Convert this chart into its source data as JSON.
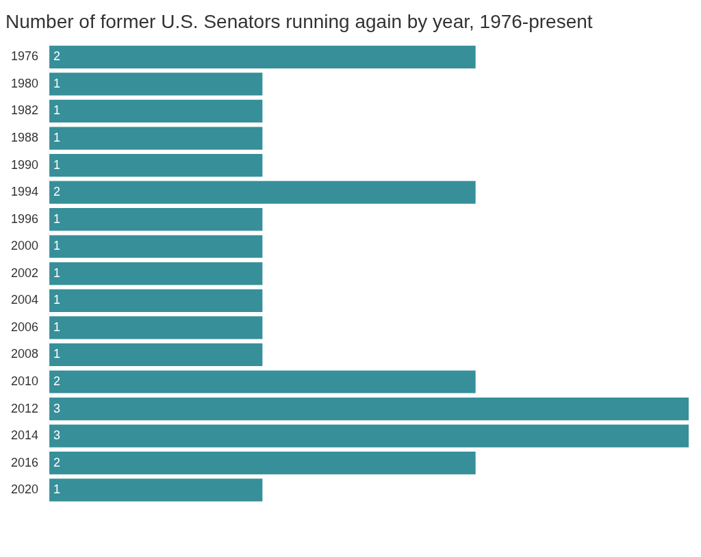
{
  "chart_data": {
    "type": "bar",
    "orientation": "horizontal",
    "title": "Number of former U.S. Senators running again by year, 1976-present",
    "categories": [
      "1976",
      "1980",
      "1982",
      "1988",
      "1990",
      "1994",
      "1996",
      "2000",
      "2002",
      "2004",
      "2006",
      "2008",
      "2010",
      "2012",
      "2014",
      "2016",
      "2020"
    ],
    "values": [
      2,
      1,
      1,
      1,
      1,
      2,
      1,
      1,
      1,
      1,
      1,
      1,
      2,
      3,
      3,
      2,
      1
    ],
    "color": "#368f99",
    "data_labels": true,
    "legend": false,
    "tick_labels": "y"
  }
}
